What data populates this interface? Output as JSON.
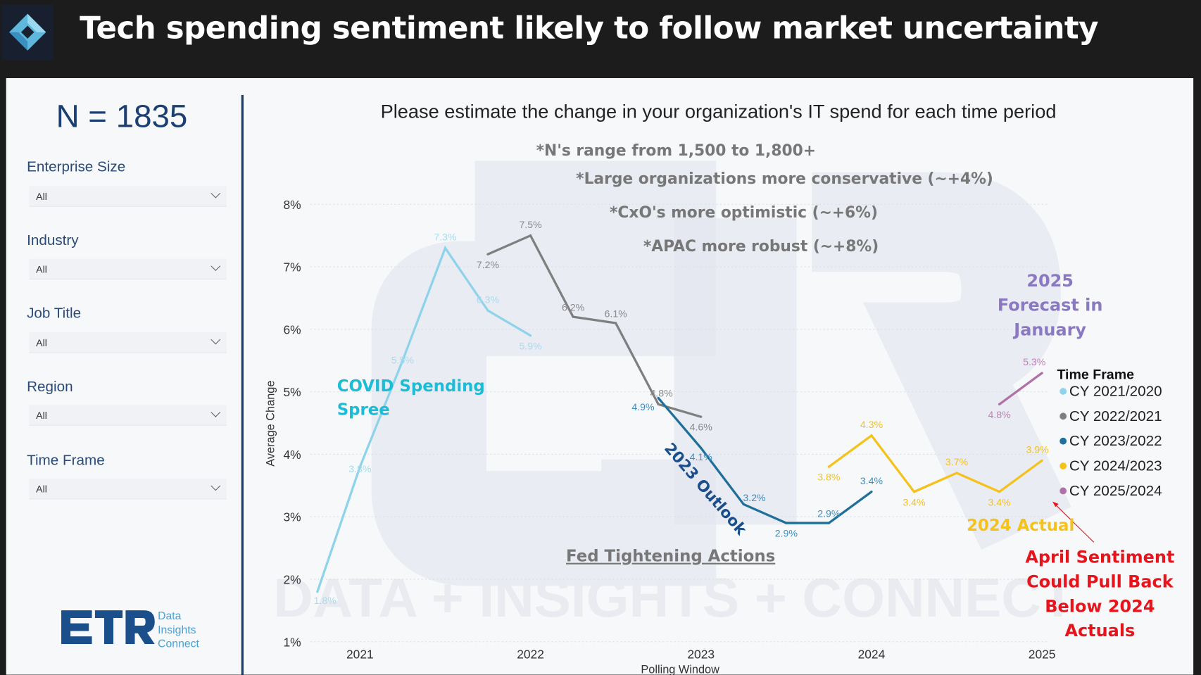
{
  "header": {
    "title": "Tech spending sentiment likely to follow market uncertainty"
  },
  "sidebar": {
    "n_count": "N = 1835",
    "filters": [
      {
        "label": "Enterprise Size",
        "value": "All"
      },
      {
        "label": "Industry",
        "value": "All"
      },
      {
        "label": "Job Title",
        "value": "All"
      },
      {
        "label": "Region",
        "value": "All"
      },
      {
        "label": "Time Frame",
        "value": "All"
      }
    ],
    "logo": {
      "wordmark": "ETR",
      "tagline": [
        "Data",
        "Insights",
        "Connect"
      ]
    }
  },
  "watermark": {
    "letters": "ETR",
    "text": "DATA + INSIGHTS + CONNECT"
  },
  "annotations": {
    "notes": [
      "*N's range from 1,500 to 1,800+",
      "*Large organizations more conservative (~+4%)",
      "*CxO's more optimistic (~+6%)",
      "*APAC more robust (~+8%)"
    ],
    "covid": [
      "COVID Spending",
      "Spree"
    ],
    "outlook": "2023 Outlook",
    "fed": "Fed Tightening Actions",
    "forecast": [
      "2025",
      "Forecast in",
      "January"
    ],
    "actual": "2024 Actual",
    "april": [
      "April Sentiment",
      "Could Pull Back",
      "Below 2024 Actuals"
    ]
  },
  "colors": {
    "cy2021": "#8fd3ea",
    "cy2022": "#7f7f7f",
    "cy2023": "#1f6f9a",
    "cy2024": "#f5c21b",
    "cy2025": "#b070a8",
    "covid": "#1bbcd6",
    "forecast": "#8a78c0",
    "alert": "#e8141c"
  },
  "chart_data": {
    "type": "line",
    "title": "Please estimate the change in your organization's IT spend for each time period",
    "xlabel": "Polling Window",
    "ylabel": "Average Change",
    "x_ticks": [
      "2021",
      "2022",
      "2023",
      "2024",
      "2025"
    ],
    "y_ticks": [
      "1%",
      "2%",
      "3%",
      "4%",
      "5%",
      "6%",
      "7%",
      "8%"
    ],
    "ylim": [
      1,
      8
    ],
    "grid": true,
    "legend_title": "Time Frame",
    "legend_position": "right",
    "series": [
      {
        "name": "CY 2021/2020",
        "x": [
          2020.75,
          2021,
          2021.25,
          2021.5,
          2021.75,
          2022
        ],
        "values": [
          1.8,
          3.8,
          5.5,
          7.3,
          6.3,
          5.9
        ],
        "labels": [
          "1.8%",
          "3.8%",
          "5.5%",
          "7.3%",
          "6.3%",
          "5.9%"
        ]
      },
      {
        "name": "CY 2022/2021",
        "x": [
          2021.75,
          2022,
          2022.25,
          2022.5,
          2022.75,
          2023
        ],
        "values": [
          7.2,
          7.5,
          6.2,
          6.1,
          4.8,
          4.6
        ],
        "labels": [
          "7.2%",
          "7.5%",
          "6.2%",
          "6.1%",
          "4.8%",
          "4.6%"
        ]
      },
      {
        "name": "CY 2023/2022",
        "x": [
          2022.75,
          2023,
          2023.25,
          2023.5,
          2023.75,
          2024
        ],
        "values": [
          4.9,
          4.1,
          3.2,
          2.9,
          2.9,
          3.4
        ],
        "labels": [
          "4.9%",
          "4.1%",
          "3.2%",
          "2.9%",
          "2.9%",
          "3.4%"
        ]
      },
      {
        "name": "CY 2024/2023",
        "x": [
          2023.75,
          2024,
          2024.25,
          2024.5,
          2024.75,
          2025
        ],
        "values": [
          3.8,
          4.3,
          3.4,
          3.7,
          3.4,
          3.9
        ],
        "labels": [
          "3.8%",
          "4.3%",
          "3.4%",
          "3.7%",
          "3.4%",
          "3.9%"
        ]
      },
      {
        "name": "CY 2025/2024",
        "x": [
          2024.75,
          2025
        ],
        "values": [
          4.8,
          5.3
        ],
        "labels": [
          "4.8%",
          "5.3%"
        ]
      }
    ]
  }
}
